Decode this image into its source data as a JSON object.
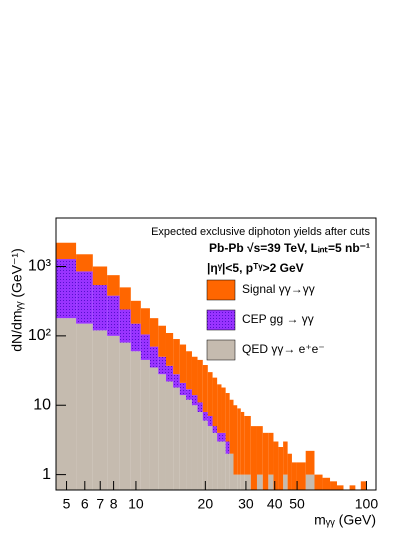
{
  "chart_data": {
    "type": "stacked_histogram",
    "annotations": [
      "Expected exclusive diphoton yields after cuts",
      "Pb-Pb  √s=39 TeV, Lᵢₙₜ=5 nb⁻¹",
      "|ηᵞ|<5, pᵀᵞ>2 GeV"
    ],
    "xlabel": "mᵧᵧ (GeV)",
    "ylabel": "dN/dmᵧᵧ (GeV⁻¹)",
    "xscale": "log",
    "yscale": "log",
    "xlim": [
      4.5,
      110
    ],
    "ylim": [
      0.6,
      5000
    ],
    "xticks": [
      5,
      6,
      7,
      8,
      10,
      20,
      30,
      40,
      50,
      100
    ],
    "yticks": [
      1,
      10,
      {
        "value": 100,
        "label": "10²"
      },
      {
        "value": 1000,
        "label": "10³"
      }
    ],
    "bins": [
      4.5,
      5.5,
      6.5,
      7.5,
      8.5,
      9.5,
      10.5,
      11.5,
      12.5,
      13.5,
      14.5,
      15.5,
      16.5,
      17.5,
      18.5,
      19.5,
      20.5,
      21.5,
      22.5,
      23.5,
      24.5,
      25.5,
      26.5,
      27.5,
      28.5,
      29.5,
      31.5,
      33.5,
      35.5,
      37.5,
      39.5,
      41.5,
      43.5,
      45.5,
      47.5,
      49.5,
      54.5,
      59.5,
      64.5,
      69.5,
      74.5,
      79.5,
      84.5,
      89.5,
      94.5,
      99.5
    ],
    "series": [
      {
        "name": "QED γγ→ e⁺e⁻",
        "color": "#c5bbaf",
        "values": [
          180,
          150,
          120,
          100,
          80,
          60,
          45,
          35,
          28,
          22,
          18,
          14,
          12,
          10,
          8,
          6,
          5,
          4,
          3,
          3,
          2,
          2,
          1,
          1,
          1,
          1,
          0,
          1,
          0,
          1,
          0,
          0,
          1,
          0,
          0,
          0,
          1,
          0,
          0,
          0,
          0,
          0,
          0,
          0,
          0
        ]
      },
      {
        "name": "CEP gg → γγ",
        "color": "#9933ff",
        "values": [
          1100,
          700,
          420,
          280,
          160,
          90,
          60,
          35,
          22,
          15,
          10,
          7,
          5,
          4,
          3,
          2,
          2,
          1,
          1,
          1,
          1,
          0,
          0,
          0,
          0,
          0,
          0,
          0,
          0,
          0,
          0,
          0,
          0,
          0,
          0,
          0,
          0,
          0,
          0,
          0,
          0,
          0,
          0,
          0,
          0
        ]
      },
      {
        "name": "Signal γγ→γγ",
        "color": "#ff6600",
        "values": [
          920,
          650,
          460,
          370,
          260,
          170,
          145,
          110,
          90,
          73,
          62,
          54,
          43,
          36,
          34,
          30,
          23,
          20,
          16,
          14,
          12,
          10,
          9,
          8,
          7,
          6,
          5,
          4,
          4,
          3,
          3,
          2.5,
          2,
          2,
          1.5,
          1.5,
          1.2,
          1,
          0.9,
          0.8,
          0.7,
          0,
          0.7,
          0,
          0.8
        ]
      }
    ]
  }
}
